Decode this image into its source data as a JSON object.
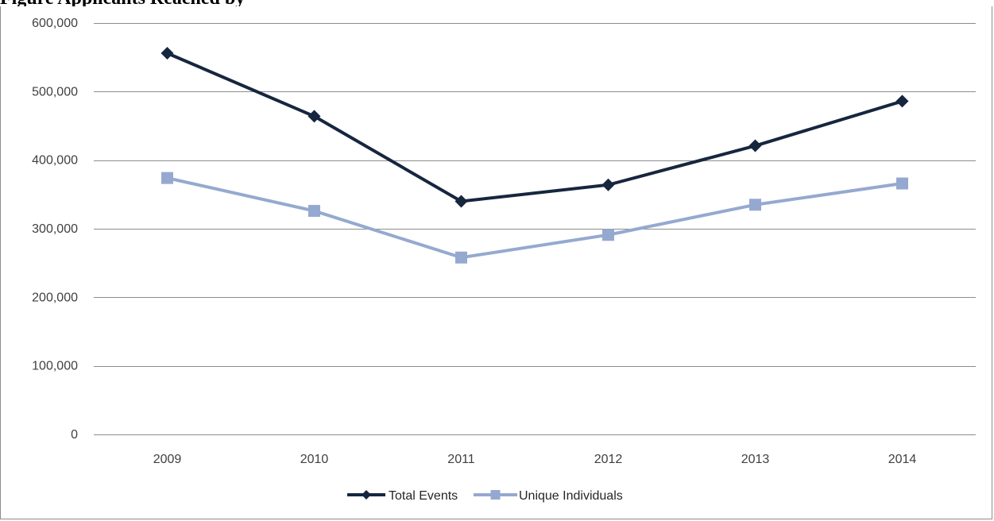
{
  "figure": {
    "title": "Figure    Applicants   Reached by"
  },
  "chart_data": {
    "type": "line",
    "categories": [
      "2009",
      "2010",
      "2011",
      "2012",
      "2013",
      "2014"
    ],
    "series": [
      {
        "name": "Total Events",
        "values": [
          556000,
          464000,
          340000,
          364000,
          421000,
          486000
        ],
        "color": "#17263f",
        "marker": "diamond"
      },
      {
        "name": "Unique Individuals",
        "values": [
          374000,
          326000,
          258000,
          291000,
          335000,
          366000
        ],
        "color": "#95a9d0",
        "marker": "square"
      }
    ],
    "ylim": [
      0,
      600000
    ],
    "yticks": [
      0,
      100000,
      200000,
      300000,
      400000,
      500000,
      600000
    ],
    "ytick_labels": [
      "0",
      "100,000",
      "200,000",
      "300,000",
      "400,000",
      "500,000",
      "600,000"
    ],
    "xlabel": "",
    "ylabel": "",
    "grid": true,
    "legend_position": "bottom-center",
    "gridline_color": "#8c8c8c"
  }
}
